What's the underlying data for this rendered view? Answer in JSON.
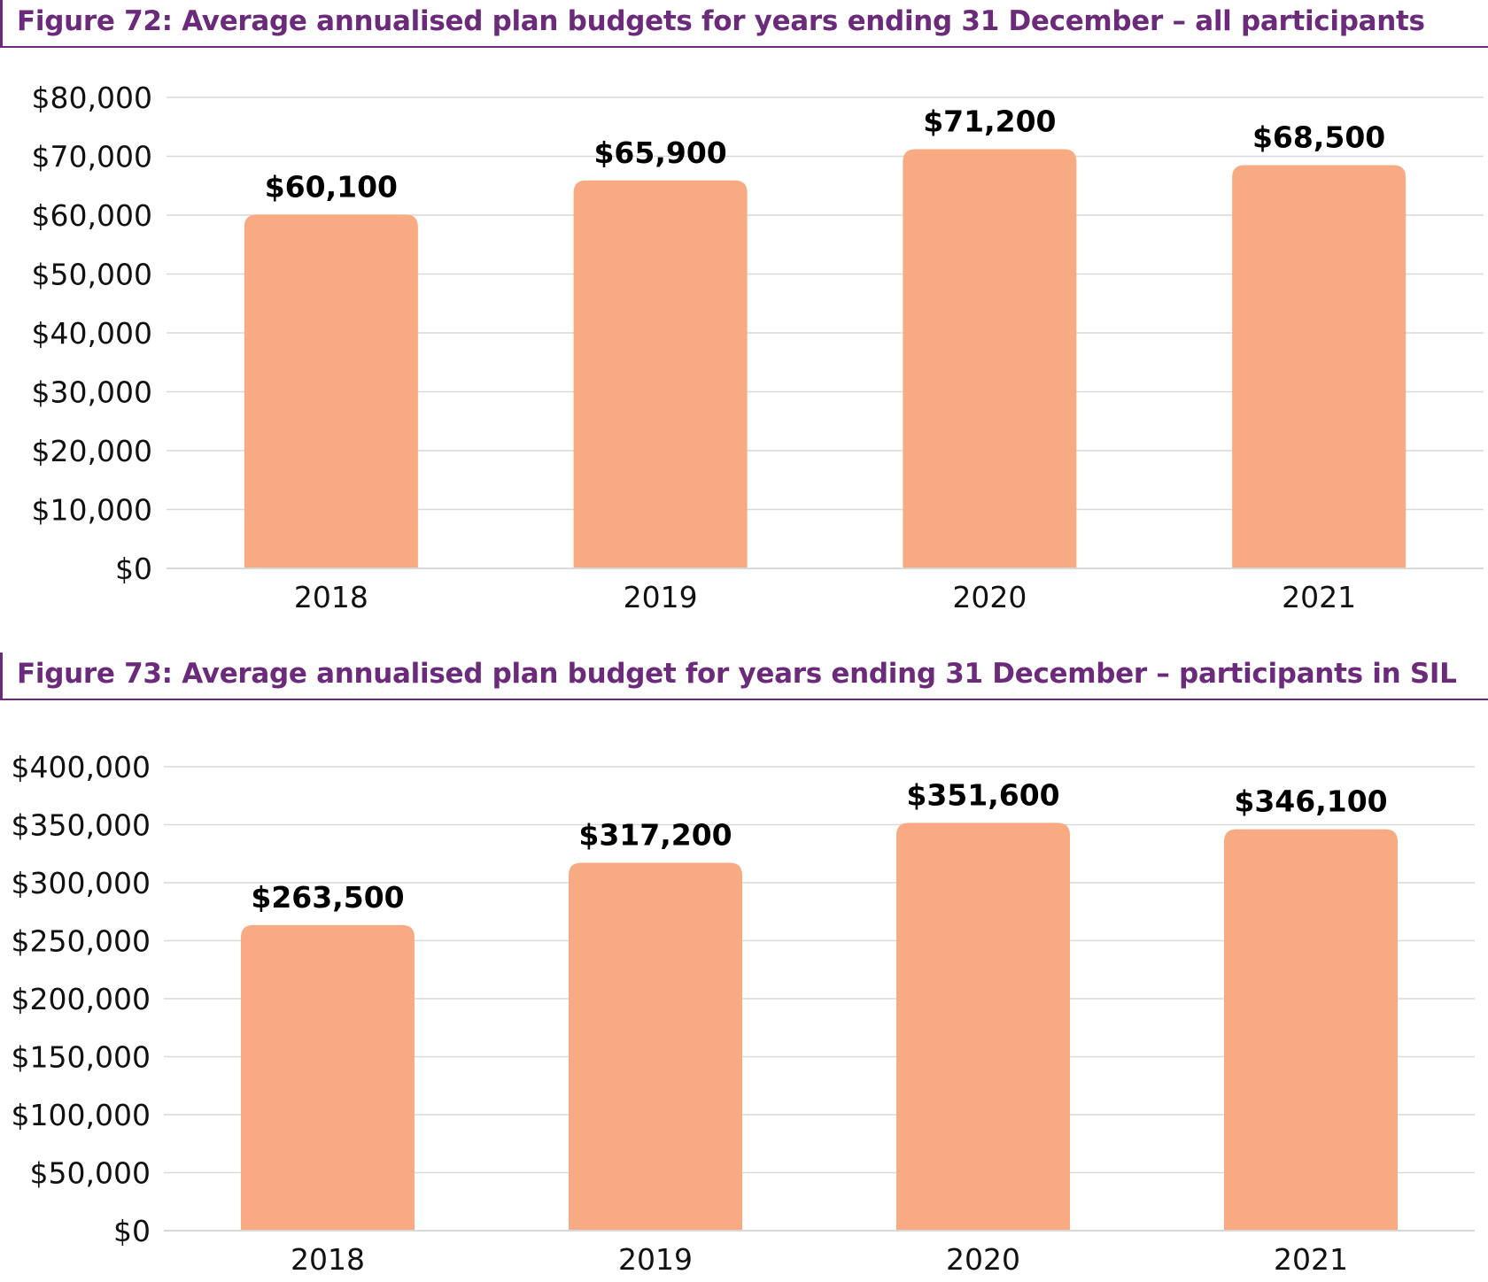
{
  "figures": [
    {
      "title": "Figure 72: Average annualised plan budgets for years ending 31 December – all participants"
    },
    {
      "title": "Figure 73: Average annualised plan budget for years ending 31 December – participants in SIL"
    }
  ],
  "chart_data": [
    {
      "type": "bar",
      "title": "Figure 72: Average annualised plan budgets for years ending 31 December – all participants",
      "categories": [
        "2018",
        "2019",
        "2020",
        "2021"
      ],
      "values": [
        60100,
        65900,
        71200,
        68500
      ],
      "data_labels": [
        "$60,100",
        "$65,900",
        "$71,200",
        "$68,500"
      ],
      "yticks": [
        0,
        10000,
        20000,
        30000,
        40000,
        50000,
        60000,
        70000,
        80000
      ],
      "ytick_labels": [
        "$0",
        "$10,000",
        "$20,000",
        "$30,000",
        "$40,000",
        "$50,000",
        "$60,000",
        "$70,000",
        "$80,000"
      ],
      "ylim": [
        0,
        80000
      ],
      "xlabel": "",
      "ylabel": "",
      "grid": true,
      "bar_color": "#f8ab82",
      "grid_color": "#d9d9d9"
    },
    {
      "type": "bar",
      "title": "Figure 73: Average annualised plan budget for years ending 31 December – participants in SIL",
      "categories": [
        "2018",
        "2019",
        "2020",
        "2021"
      ],
      "values": [
        263500,
        317200,
        351600,
        346100
      ],
      "data_labels": [
        "$263,500",
        "$317,200",
        "$351,600",
        "$346,100"
      ],
      "yticks": [
        0,
        50000,
        100000,
        150000,
        200000,
        250000,
        300000,
        350000,
        400000
      ],
      "ytick_labels": [
        "$0",
        "$50,000",
        "$100,000",
        "$150,000",
        "$200,000",
        "$250,000",
        "$300,000",
        "$350,000",
        "$400,000"
      ],
      "ylim": [
        0,
        400000
      ],
      "xlabel": "",
      "ylabel": "",
      "grid": true,
      "bar_color": "#f8ab82",
      "grid_color": "#d9d9d9"
    }
  ]
}
